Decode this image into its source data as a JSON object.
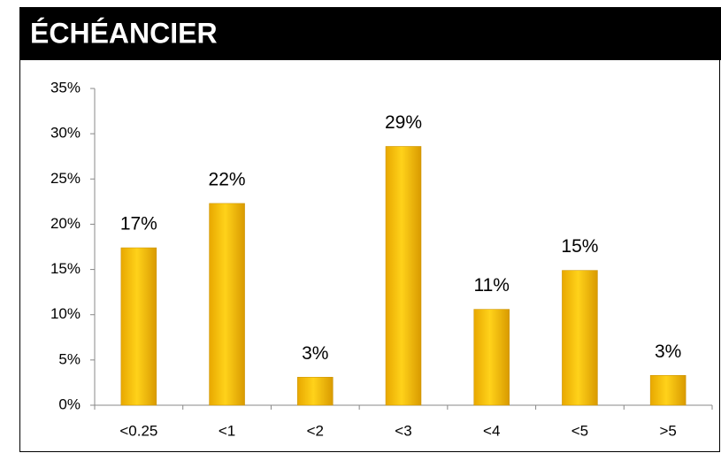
{
  "chart_data": {
    "type": "bar",
    "title": "ÉCHÉANCIER",
    "categories": [
      "<0.25",
      "<1",
      "<2",
      "<3",
      "<4",
      "<5",
      ">5"
    ],
    "values": [
      17.4,
      22.3,
      3.1,
      28.6,
      10.6,
      14.9,
      3.3
    ],
    "value_labels": [
      "17%",
      "22%",
      "3%",
      "29%",
      "11%",
      "15%",
      "3%"
    ],
    "color": "#f5c000",
    "ylim": [
      0,
      35
    ],
    "yticks": [
      {
        "value": 0,
        "label": "0%"
      },
      {
        "value": 5,
        "label": "5%"
      },
      {
        "value": 10,
        "label": "10%"
      },
      {
        "value": 15,
        "label": "15%"
      },
      {
        "value": 20,
        "label": "20%"
      },
      {
        "value": 25,
        "label": "25%"
      },
      {
        "value": 30,
        "label": "30%"
      },
      {
        "value": 35,
        "label": "35%"
      }
    ],
    "grid": false
  }
}
